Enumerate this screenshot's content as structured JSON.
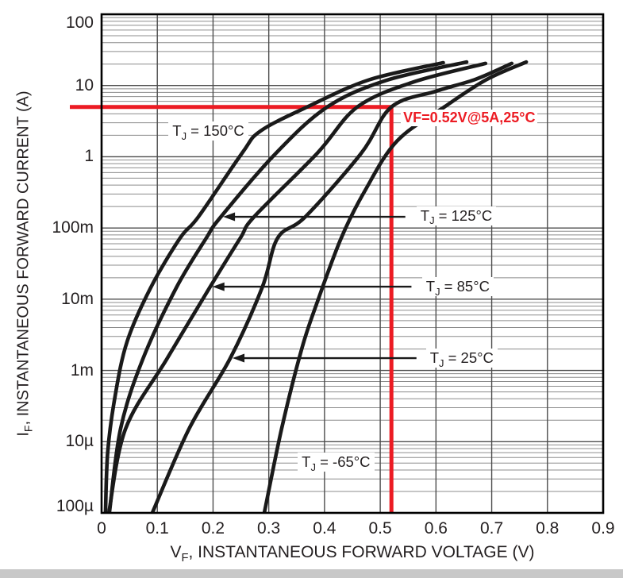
{
  "page": {
    "background": "#ffffff",
    "bottom_strip_color": "#c8c8c8"
  },
  "chart_data": {
    "type": "line",
    "scale": "semilog-y",
    "grid": true,
    "title": "",
    "xlabel": {
      "pre": "V",
      "sub": "F",
      "rest": ", INSTANTANEOUS FORWARD VOLTAGE (V)"
    },
    "ylabel": {
      "pre": "I",
      "sub": "F",
      "rest": ", INSTANTANEOUS FORWARD CURRENT (A)"
    },
    "x_range": [
      0,
      0.9
    ],
    "x_ticks": [
      "0",
      "0.1",
      "0.2",
      "0.3",
      "0.4",
      "0.5",
      "0.6",
      "0.7",
      "0.8",
      "0.9"
    ],
    "y_tick_labels": [
      "100",
      "10",
      "1",
      "100m",
      "10m",
      "1m",
      "10µ",
      "100µ"
    ],
    "y_decades": 7,
    "series": [
      {
        "name": "TJ = 150°C",
        "label": {
          "pre": "T",
          "sub": "J",
          "rest": " = 150°C"
        },
        "label_anchor": {
          "v": 0.12,
          "d": 1.64
        },
        "arrow": null,
        "points": [
          [
            0.007,
            7.0
          ],
          [
            0.011,
            6.15
          ],
          [
            0.024,
            5.37
          ],
          [
            0.046,
            4.59
          ],
          [
            0.088,
            3.84
          ],
          [
            0.141,
            3.14
          ],
          [
            0.174,
            2.84
          ],
          [
            0.252,
            1.95
          ],
          [
            0.285,
            1.64
          ],
          [
            0.369,
            1.301
          ],
          [
            0.48,
            0.92
          ],
          [
            0.613,
            0.68
          ]
        ]
      },
      {
        "name": "TJ = 125°C",
        "label": {
          "pre": "T",
          "sub": "J",
          "rest": " = 125°C"
        },
        "label_anchor": {
          "v": 0.565,
          "d": 2.83
        },
        "arrow": {
          "from_v": 0.545,
          "to_v": 0.218,
          "d": 2.843
        },
        "points": [
          [
            0.014,
            7.0
          ],
          [
            0.034,
            5.82
          ],
          [
            0.074,
            4.84
          ],
          [
            0.134,
            3.84
          ],
          [
            0.188,
            3.14
          ],
          [
            0.214,
            2.843
          ],
          [
            0.313,
            1.95
          ],
          [
            0.405,
            1.301
          ],
          [
            0.51,
            0.93
          ],
          [
            0.655,
            0.67
          ]
        ]
      },
      {
        "name": "TJ = 85°C",
        "label": {
          "pre": "T",
          "sub": "J",
          "rest": " = 85°C"
        },
        "label_anchor": {
          "v": 0.575,
          "d": 3.824
        },
        "arrow": {
          "from_v": 0.556,
          "to_v": 0.199,
          "d": 3.824
        },
        "points": [
          [
            0.013,
            7.0
          ],
          [
            0.043,
            5.82
          ],
          [
            0.117,
            4.84
          ],
          [
            0.195,
            3.824
          ],
          [
            0.249,
            3.14
          ],
          [
            0.274,
            2.84
          ],
          [
            0.387,
            1.95
          ],
          [
            0.459,
            1.301
          ],
          [
            0.56,
            0.95
          ],
          [
            0.689,
            0.69
          ]
        ]
      },
      {
        "name": "TJ = 25°C",
        "label": {
          "pre": "T",
          "sub": "J",
          "rest": " = 25°C"
        },
        "label_anchor": {
          "v": 0.582,
          "d": 4.827
        },
        "arrow": {
          "from_v": 0.565,
          "to_v": 0.235,
          "d": 4.827
        },
        "points": [
          [
            0.091,
            7.0
          ],
          [
            0.157,
            5.82
          ],
          [
            0.231,
            4.827
          ],
          [
            0.288,
            3.84
          ],
          [
            0.316,
            3.14
          ],
          [
            0.366,
            2.84
          ],
          [
            0.466,
            1.95
          ],
          [
            0.52,
            1.301
          ],
          [
            0.6,
            1.08
          ],
          [
            0.672,
            0.91
          ],
          [
            0.736,
            0.69
          ]
        ]
      },
      {
        "name": "TJ = -65°C",
        "label": {
          "pre": "T",
          "sub": "J",
          "rest": " = -65°C"
        },
        "label_anchor": {
          "v": 0.352,
          "d": 6.29
        },
        "arrow": null,
        "points": [
          [
            0.292,
            7.0
          ],
          [
            0.323,
            5.82
          ],
          [
            0.359,
            4.7
          ],
          [
            0.387,
            4.04
          ],
          [
            0.43,
            3.14
          ],
          [
            0.473,
            2.47
          ],
          [
            0.53,
            1.78
          ],
          [
            0.615,
            1.301
          ],
          [
            0.69,
            0.92
          ],
          [
            0.762,
            0.67
          ]
        ]
      }
    ],
    "annotation": {
      "text": "VF=0.52V@5A,25°C",
      "v": 0.52,
      "d": 1.301
    },
    "colors": {
      "curve": "#1a1a1a",
      "grid_major": "#4d4d4d",
      "grid_minor": "#8c8c8c",
      "border": "#000000",
      "marker": "#ec1b23",
      "text": "#231f20"
    }
  }
}
